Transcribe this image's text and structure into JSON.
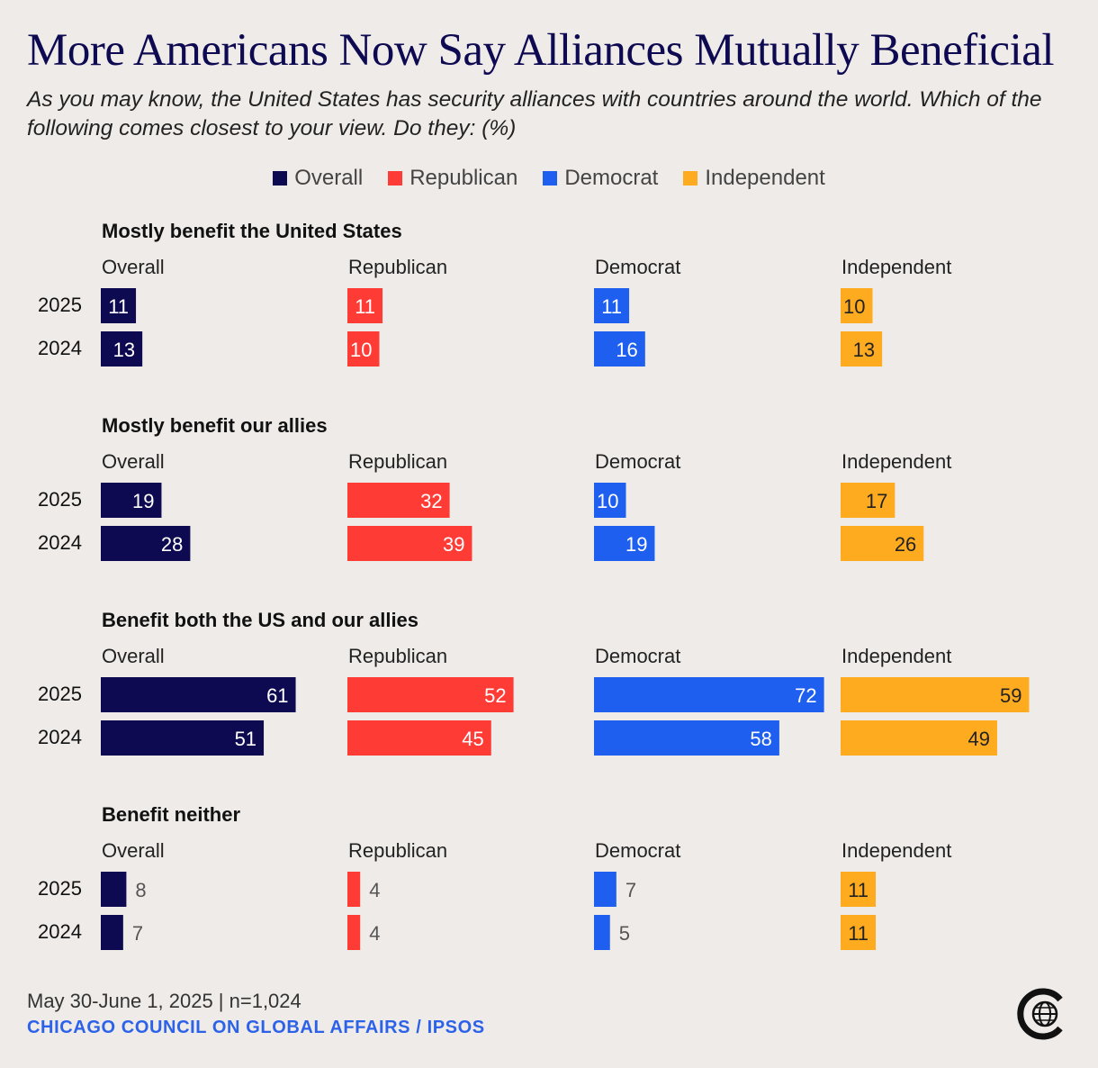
{
  "title": "More Americans Now Say Alliances Mutually Beneficial",
  "subtitle": "As you may know, the United States has security alliances with countries around the world. Which of the following comes closest to your view. Do they: (%)",
  "footer": {
    "date_sample": "May 30-June 1, 2025 | n=1,024",
    "source": "CHICAGO COUNCIL ON GLOBAL AFFAIRS / IPSOS"
  },
  "logo": {
    "icon": "globe-logo-icon"
  },
  "chart_data": {
    "type": "bar",
    "orientation": "horizontal",
    "unit": "%",
    "xlim": [
      0,
      100
    ],
    "grid": false,
    "legend_position": "top-center",
    "legend": [
      {
        "name": "Overall",
        "color": "#0e0a52"
      },
      {
        "name": "Republican",
        "color": "#ff3b36"
      },
      {
        "name": "Democrat",
        "color": "#1f5ff0"
      },
      {
        "name": "Independent",
        "color": "#ffab1f"
      }
    ],
    "years": [
      "2025",
      "2024"
    ],
    "panels": [
      {
        "title": "Mostly benefit the United States",
        "groups": [
          {
            "name": "Overall",
            "values": [
              11,
              13
            ]
          },
          {
            "name": "Republican",
            "values": [
              11,
              10
            ]
          },
          {
            "name": "Democrat",
            "values": [
              11,
              16
            ]
          },
          {
            "name": "Independent",
            "values": [
              10,
              13
            ]
          }
        ]
      },
      {
        "title": "Mostly benefit our allies",
        "groups": [
          {
            "name": "Overall",
            "values": [
              19,
              28
            ]
          },
          {
            "name": "Republican",
            "values": [
              32,
              39
            ]
          },
          {
            "name": "Democrat",
            "values": [
              10,
              19
            ]
          },
          {
            "name": "Independent",
            "values": [
              17,
              26
            ]
          }
        ]
      },
      {
        "title": "Benefit both the US and our allies",
        "groups": [
          {
            "name": "Overall",
            "values": [
              61,
              51
            ]
          },
          {
            "name": "Republican",
            "values": [
              52,
              45
            ]
          },
          {
            "name": "Democrat",
            "values": [
              72,
              58
            ]
          },
          {
            "name": "Independent",
            "values": [
              59,
              49
            ]
          }
        ]
      },
      {
        "title": "Benefit neither",
        "groups": [
          {
            "name": "Overall",
            "values": [
              8,
              7
            ]
          },
          {
            "name": "Republican",
            "values": [
              4,
              4
            ]
          },
          {
            "name": "Democrat",
            "values": [
              7,
              5
            ]
          },
          {
            "name": "Independent",
            "values": [
              11,
              11
            ]
          }
        ]
      }
    ]
  }
}
